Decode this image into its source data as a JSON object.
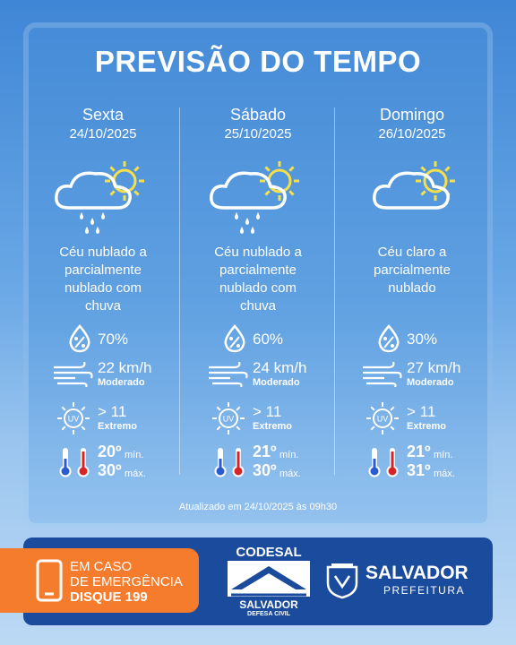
{
  "title": "PREVISÃO DO TEMPO",
  "days": [
    {
      "name": "Sexta",
      "date": "24/10/2025",
      "description": "Céu nublado a parcialmente nublado com chuva",
      "humidity": "70%",
      "wind": "22 km/h",
      "wind_level": "Moderado",
      "uv": "> 11",
      "uv_level": "Extremo",
      "min": "20º",
      "min_label": "mín.",
      "max": "30º",
      "max_label": "máx."
    },
    {
      "name": "Sábado",
      "date": "25/10/2025",
      "description": "Céu nublado a parcialmente nublado com chuva",
      "humidity": "60%",
      "wind": "24 km/h",
      "wind_level": "Moderado",
      "uv": "> 11",
      "uv_level": "Extremo",
      "min": "21º",
      "min_label": "mín.",
      "max": "30º",
      "max_label": "máx."
    },
    {
      "name": "Domingo",
      "date": "26/10/2025",
      "description": "Céu claro a parcialmente nublado",
      "humidity": "30%",
      "wind": "27 km/h",
      "wind_level": "Moderado",
      "uv": "> 11",
      "uv_level": "Extremo",
      "min": "21º",
      "min_label": "mín.",
      "max": "31º",
      "max_label": "máx."
    }
  ],
  "uv_icon": "UV",
  "updated": "Atualizado em 24/10/2025 às 09h30",
  "emergency": {
    "line1": "EM CASO",
    "line2": "DE EMERGÊNCIA",
    "line3": "DISQUE 199"
  },
  "codesal": {
    "name": "CODESAL",
    "city": "SALVADOR",
    "sub": "DEFESA CIVIL"
  },
  "prefeitura": {
    "name": "SALVADOR",
    "sub": "PREFEITURA"
  }
}
